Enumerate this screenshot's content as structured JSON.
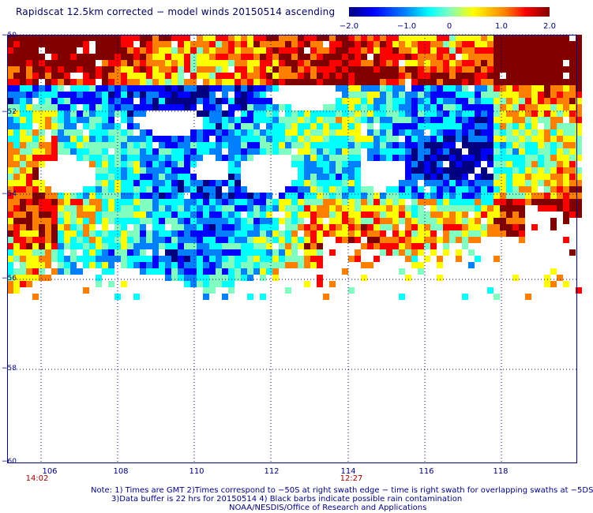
{
  "title": "Rapidscat 12.5km corrected − model winds 20150514 ascending",
  "colorbar": {
    "ticks": [
      "−2.0",
      "−1.0",
      "0",
      "1.0",
      "2.0"
    ],
    "colors": [
      "#000080",
      "#0000ff",
      "#0080ff",
      "#00ffff",
      "#80ffc0",
      "#ffff00",
      "#ff8000",
      "#ff0000",
      "#800000"
    ]
  },
  "lat_labels": [
    "−50",
    "−52",
    "−54",
    "−56",
    "−58",
    "−60"
  ],
  "lon_labels": [
    "106",
    "108",
    "110",
    "112",
    "114",
    "116",
    "118"
  ],
  "time_labels": [
    "14:02",
    "12:27"
  ],
  "notes": {
    "line1": "Note: 1) Times are GMT 2)Times correspond to −50S at right swath edge − time is right swath for overlapping swaths at −5DS",
    "line2": "3)Data buffer is 22 hrs for 20150514 4) Black barbs indicate possible rain contamination",
    "line3": "NOAA/NESDIS/Office of Research and Applications"
  },
  "map": {
    "lat_range": [
      -60,
      -50
    ],
    "lon_range": [
      105.2,
      119.9
    ],
    "data_lat_extent": [
      -56.5,
      -50
    ],
    "grid": "dotted"
  }
}
